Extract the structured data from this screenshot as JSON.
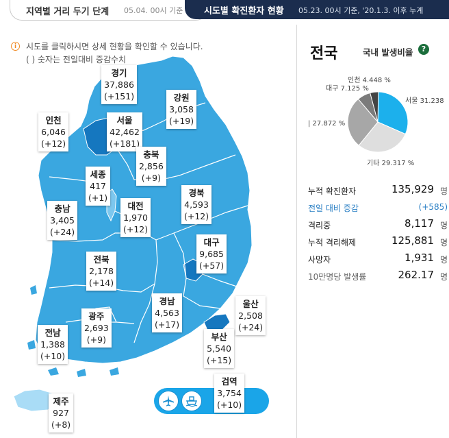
{
  "tabs": {
    "distance": {
      "title": "지역별 거리 두기 단계",
      "date": "05.04. 00시 기준"
    },
    "status": {
      "title": "시도별 확진환자 현황",
      "date": "05.23. 00시 기준, '20.1.3. 이후 누계"
    }
  },
  "notice": {
    "line1": "시도를 클릭하시면 상세 현황을 확인할 수 있습니다.",
    "line2": "( ) 숫자는 전일대비 증감수치"
  },
  "regions": [
    {
      "id": "gyeonggi",
      "name": "경기",
      "count": "37,886",
      "delta": "(+151)"
    },
    {
      "id": "gangwon",
      "name": "강원",
      "count": "3,058",
      "delta": "(+19)"
    },
    {
      "id": "incheon",
      "name": "인천",
      "count": "6,046",
      "delta": "(+12)"
    },
    {
      "id": "seoul",
      "name": "서울",
      "count": "42,462",
      "delta": "(+181)"
    },
    {
      "id": "chungbuk",
      "name": "충북",
      "count": "2,856",
      "delta": "(+9)"
    },
    {
      "id": "sejong",
      "name": "세종",
      "count": "417",
      "delta": "(+1)"
    },
    {
      "id": "chungnam",
      "name": "충남",
      "count": "3,405",
      "delta": "(+24)"
    },
    {
      "id": "daejeon",
      "name": "대전",
      "count": "1,970",
      "delta": "(+12)"
    },
    {
      "id": "gyeongbuk",
      "name": "경북",
      "count": "4,593",
      "delta": "(+12)"
    },
    {
      "id": "daegu",
      "name": "대구",
      "count": "9,685",
      "delta": "(+57)"
    },
    {
      "id": "jeonbuk",
      "name": "전북",
      "count": "2,178",
      "delta": "(+14)"
    },
    {
      "id": "gyeongnam",
      "name": "경남",
      "count": "4,563",
      "delta": "(+17)"
    },
    {
      "id": "ulsan",
      "name": "울산",
      "count": "2,508",
      "delta": "(+24)"
    },
    {
      "id": "gwangju",
      "name": "광주",
      "count": "2,693",
      "delta": "(+9)"
    },
    {
      "id": "jeonnam",
      "name": "전남",
      "count": "1,388",
      "delta": "(+10)"
    },
    {
      "id": "busan",
      "name": "부산",
      "count": "5,540",
      "delta": "(+15)"
    },
    {
      "id": "quarantine",
      "name": "검역",
      "count": "3,754",
      "delta": "(+10)"
    },
    {
      "id": "jeju",
      "name": "제주",
      "count": "927",
      "delta": "(+8)"
    }
  ],
  "national": {
    "title": "전국",
    "ratio_title": "국내 발생비율",
    "help_icon": "question-circle-icon",
    "stats": [
      {
        "label": "누적 확진환자",
        "value": "135,929",
        "unit": "명"
      },
      {
        "label": "전일 대비 증감",
        "value": "(+585)",
        "unit": ""
      },
      {
        "label": "격리중",
        "value": "8,117",
        "unit": "명"
      },
      {
        "label": "누적 격리해제",
        "value": "125,881",
        "unit": "명"
      },
      {
        "label": "사망자",
        "value": "1,931",
        "unit": "명"
      },
      {
        "label": "10만명당 발생률",
        "value": "262.17",
        "unit": "명"
      }
    ]
  },
  "chart_data": {
    "type": "pie",
    "slices": [
      {
        "label": "서울 31.238",
        "value": 31.238,
        "color": "#1cb0ec"
      },
      {
        "label": "기타 29.317 %",
        "value": 29.317,
        "color": "#dedede"
      },
      {
        "label": "| 27.872 %",
        "value": 27.872,
        "color": "#a7a7a7"
      },
      {
        "label": "대구 7.125 %",
        "value": 7.125,
        "color": "#7b7b7b"
      },
      {
        "label": "인천 4.448 %",
        "value": 4.448,
        "color": "#444444"
      }
    ]
  },
  "colors": {
    "map_light": "#3aa7e0",
    "map_dark": "#1577bf",
    "jeju": "#a9dcf6",
    "tab_dark": "#1b2d4e",
    "accent_blue": "#2a7fc4"
  },
  "transport": {
    "airplane_icon": "airplane-icon",
    "ship_icon": "ship-icon"
  }
}
